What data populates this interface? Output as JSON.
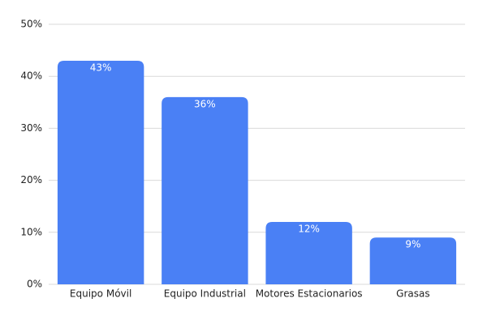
{
  "chart_data": {
    "type": "bar",
    "categories": [
      "Equipo Móvil",
      "Equipo Industrial",
      "Motores Estacionarios",
      "Grasas"
    ],
    "values": [
      43,
      36,
      12,
      9
    ],
    "value_labels": [
      "43%",
      "36%",
      "12%",
      "9%"
    ],
    "color": "#4a80f5",
    "ylim": [
      0,
      50
    ],
    "yticks": [
      {
        "value": 0,
        "label": "0%"
      },
      {
        "value": 10,
        "label": "10%"
      },
      {
        "value": 20,
        "label": "20%"
      },
      {
        "value": 30,
        "label": "30%"
      },
      {
        "value": 40,
        "label": "40%"
      },
      {
        "value": 50,
        "label": "50%"
      }
    ],
    "grid": true
  }
}
